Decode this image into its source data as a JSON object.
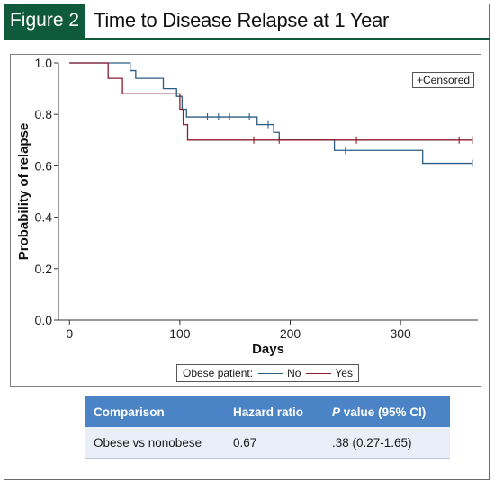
{
  "figure": {
    "badge": "Figure 2",
    "title": "Time to Disease Relapse at 1 Year"
  },
  "colors": {
    "brand_green": "#0f5a3a",
    "table_header": "#4a83c6",
    "table_row": "#e9eef8",
    "series_no": "#2c5d84",
    "series_yes": "#8b1c2c"
  },
  "chart_data": {
    "type": "line",
    "step": "post",
    "xlabel": "Days",
    "ylabel": "Probability of relapse",
    "xlim": [
      -10,
      370
    ],
    "ylim": [
      0.0,
      1.0
    ],
    "xticks": [
      0,
      100,
      200,
      300
    ],
    "xtick_labels": [
      "0",
      "100",
      "200",
      "300"
    ],
    "yticks": [
      0.0,
      0.2,
      0.4,
      0.6,
      0.8,
      1.0
    ],
    "ytick_labels": [
      "0.0",
      "0.2",
      "0.4",
      "0.6",
      "0.8",
      "1.0"
    ],
    "grid": false,
    "censored_label": "+Censored",
    "legend_title": "Obese patient:",
    "series": [
      {
        "name": "No",
        "color": "#2c5d84",
        "x": [
          0,
          55,
          60,
          85,
          97,
          102,
          106,
          150,
          170,
          185,
          190,
          240,
          320,
          365
        ],
        "y": [
          1.0,
          0.97,
          0.94,
          0.9,
          0.87,
          0.82,
          0.79,
          0.79,
          0.76,
          0.73,
          0.7,
          0.66,
          0.61,
          0.61
        ],
        "censored_x": [
          125,
          135,
          145,
          163,
          180,
          250,
          365
        ],
        "censored_y": [
          0.79,
          0.79,
          0.79,
          0.79,
          0.76,
          0.66,
          0.61
        ]
      },
      {
        "name": "Yes",
        "color": "#8b1c2c",
        "x": [
          0,
          35,
          48,
          100,
          103,
          107,
          365
        ],
        "y": [
          1.0,
          0.94,
          0.88,
          0.82,
          0.76,
          0.7,
          0.7
        ],
        "censored_x": [
          167,
          190,
          260,
          353,
          365
        ],
        "censored_y": [
          0.7,
          0.7,
          0.7,
          0.7,
          0.7
        ]
      }
    ]
  },
  "table": {
    "headers": {
      "comparison": "Comparison",
      "hazard_ratio": "Hazard ratio",
      "p_value_italic": "P",
      "p_value_rest": " value (95% CI)"
    },
    "row": {
      "comparison": "Obese vs nonobese",
      "hazard_ratio": "0.67",
      "p_value": ".38 (0.27-1.65)"
    }
  }
}
